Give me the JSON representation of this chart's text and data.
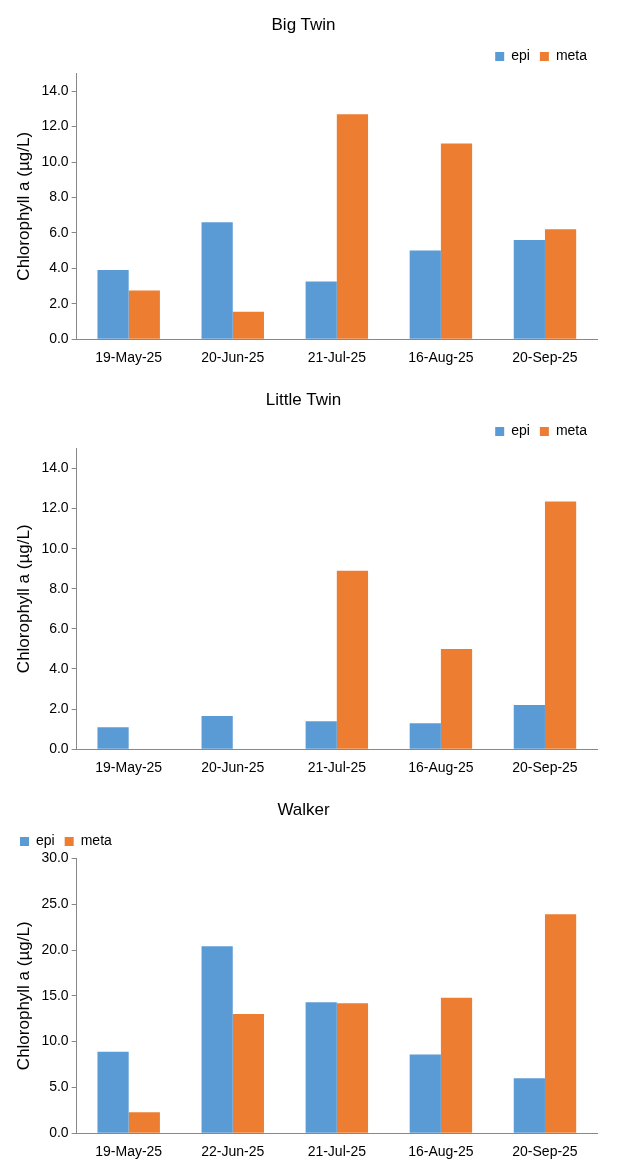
{
  "chart_data": [
    {
      "type": "bar",
      "title": "Big Twin",
      "ylabel": "Chlorophyll a (µg/L)",
      "categories": [
        "19-May-25",
        "20-Jun-25",
        "21-Jul-25",
        "16-Aug-25",
        "20-Sep-25"
      ],
      "series": [
        {
          "name": "epi",
          "color": "#5b9bd5",
          "values": [
            3.9,
            6.6,
            3.25,
            5.0,
            5.6
          ]
        },
        {
          "name": "meta",
          "color": "#ed7d31",
          "values": [
            2.75,
            1.55,
            12.7,
            11.05,
            6.2
          ]
        }
      ],
      "ylim": [
        0,
        15
      ],
      "yticks": [
        {
          "value": 0,
          "label": "0.0"
        },
        {
          "value": 2,
          "label": "2.0"
        },
        {
          "value": 4,
          "label": "4.0"
        },
        {
          "value": 6,
          "label": "6.0"
        },
        {
          "value": 8,
          "label": "8.0"
        },
        {
          "value": 10,
          "label": "10.0"
        },
        {
          "value": 12,
          "label": "12.0"
        },
        {
          "value": 14,
          "label": "14.0"
        }
      ],
      "grid": false,
      "legend": "top right"
    },
    {
      "type": "bar",
      "title": "Little Twin",
      "ylabel": "Chlorophyll a (µg/L)",
      "categories": [
        "19-May-25",
        "20-Jun-25",
        "21-Jul-25",
        "16-Aug-25",
        "20-Sep-25"
      ],
      "series": [
        {
          "name": "epi",
          "color": "#5b9bd5",
          "values": [
            1.1,
            1.65,
            1.4,
            1.3,
            2.2
          ]
        },
        {
          "name": "meta",
          "color": "#ed7d31",
          "values": [
            null,
            null,
            8.9,
            5.0,
            12.35
          ]
        }
      ],
      "ylim": [
        0,
        15
      ],
      "yticks": [
        {
          "value": 0,
          "label": "0.0"
        },
        {
          "value": 2,
          "label": "2.0"
        },
        {
          "value": 4,
          "label": "4.0"
        },
        {
          "value": 6,
          "label": "6.0"
        },
        {
          "value": 8,
          "label": "8.0"
        },
        {
          "value": 10,
          "label": "10.0"
        },
        {
          "value": 12,
          "label": "12.0"
        },
        {
          "value": 14,
          "label": "14.0"
        }
      ],
      "grid": false,
      "legend": "top right"
    },
    {
      "type": "bar",
      "title": "Walker",
      "ylabel": "Chlorophyll a (µg/L)",
      "categories": [
        "19-May-25",
        "22-Jun-25",
        "21-Jul-25",
        "16-Aug-25",
        "20-Sep-25"
      ],
      "series": [
        {
          "name": "epi",
          "color": "#5b9bd5",
          "values": [
            8.9,
            20.4,
            14.3,
            8.6,
            6.0
          ]
        },
        {
          "name": "meta",
          "color": "#ed7d31",
          "values": [
            2.3,
            13.0,
            14.2,
            14.8,
            23.9
          ]
        }
      ],
      "ylim": [
        0,
        30
      ],
      "yticks": [
        {
          "value": 0,
          "label": "0.0"
        },
        {
          "value": 5,
          "label": "5.0"
        },
        {
          "value": 10,
          "label": "10.0"
        },
        {
          "value": 15,
          "label": "15.0"
        },
        {
          "value": 20,
          "label": "20.0"
        },
        {
          "value": 25,
          "label": "25.0"
        },
        {
          "value": 30,
          "label": "30.0"
        }
      ],
      "grid": false,
      "legend": "top left"
    }
  ]
}
